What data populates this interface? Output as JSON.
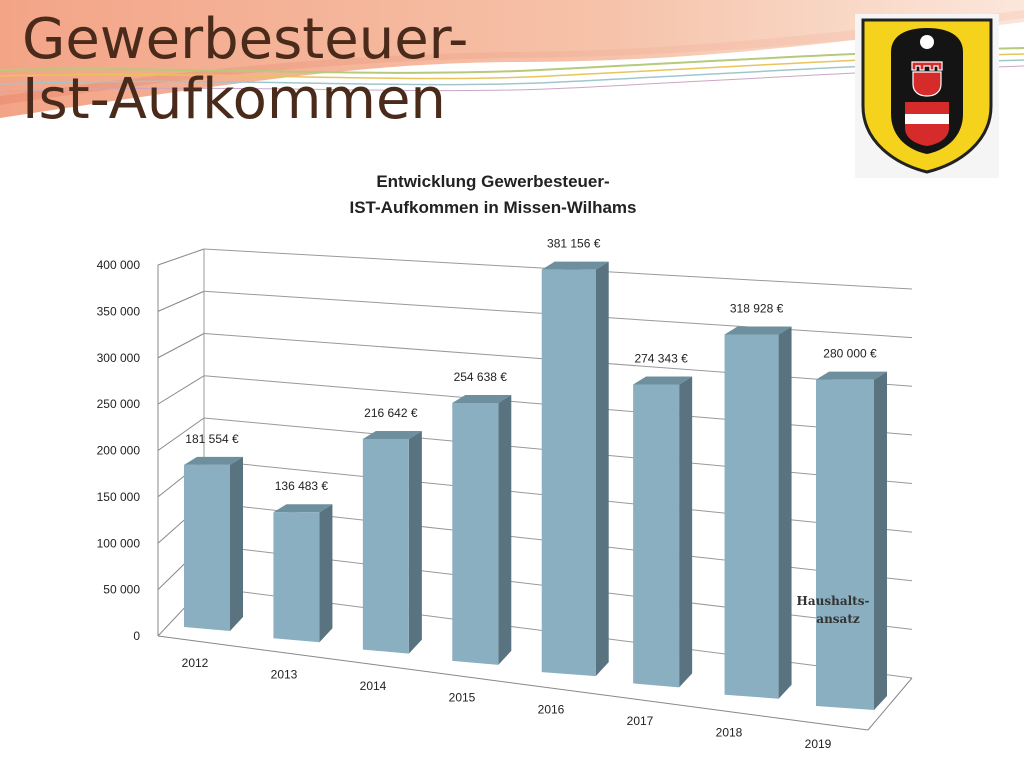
{
  "slide": {
    "title_line1": "Gewerbesteuer-",
    "title_line2": "Ist-Aufkommen"
  },
  "colors": {
    "title": "#4a2a1a",
    "bar_front": "#8aafc0",
    "bar_top": "#6e8f9e",
    "bar_side": "#5a7380",
    "crest_yellow": "#f5d21c",
    "crest_red": "#d62b2b"
  },
  "logo": {
    "name": "municipal-coat-of-arms",
    "icon": "shield-icon"
  },
  "chart_data": {
    "type": "bar",
    "title_line1": "Entwicklung Gewerbesteuer-",
    "title_line2": "IST-Aufkommen in Missen-Wilhams",
    "categories": [
      "2012",
      "2013",
      "2014",
      "2015",
      "2016",
      "2017",
      "2018",
      "2019"
    ],
    "values": [
      181554,
      136483,
      216642,
      254638,
      381156,
      274343,
      318928,
      280000
    ],
    "data_labels": [
      "181 554 €",
      "136 483 €",
      "216 642 €",
      "254 638 €",
      "381 156 €",
      "274 343 €",
      "318 928 €",
      "280 000 €"
    ],
    "ylim": [
      0,
      400000
    ],
    "yticks": [
      "0",
      "50 000",
      "100 000",
      "150 000",
      "200 000",
      "250 000",
      "300 000",
      "350 000",
      "400 000"
    ],
    "style": "3d-perspective",
    "grid": true,
    "annotation_line1": "Haushalts-",
    "annotation_line2": "ansatz"
  }
}
